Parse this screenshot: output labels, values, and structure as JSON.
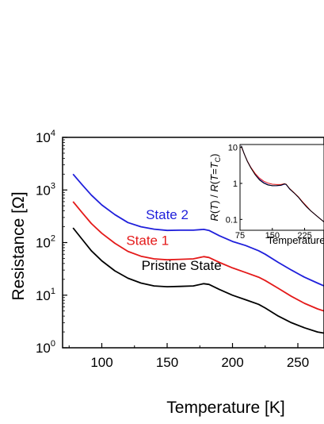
{
  "chart_data": [
    {
      "type": "line",
      "xlabel": "Temperature [K]",
      "ylabel_text": "Resistance [",
      "ylabel_unit": "Ω",
      "ylabel_close": "]",
      "x_scale": "linear",
      "y_scale": "log",
      "xlim": [
        70,
        270
      ],
      "ylim": [
        1,
        10000
      ],
      "x_ticks": [
        {
          "value": 100,
          "label": "100"
        },
        {
          "value": 150,
          "label": "150"
        },
        {
          "value": 200,
          "label": "200"
        },
        {
          "value": 250,
          "label": "250"
        }
      ],
      "y_ticks": [
        {
          "value": 1,
          "base": "10",
          "exp": "0"
        },
        {
          "value": 10,
          "base": "10",
          "exp": "1"
        },
        {
          "value": 100,
          "base": "10",
          "exp": "2"
        },
        {
          "value": 1000,
          "base": "10",
          "exp": "3"
        },
        {
          "value": 10000,
          "base": "10",
          "exp": "4"
        }
      ],
      "grid": false,
      "series": [
        {
          "name": "State 2",
          "color": "#1f1fdb",
          "label_at": {
            "x": 150,
            "y": 280
          },
          "x": [
            78,
            85,
            92,
            100,
            110,
            120,
            130,
            140,
            150,
            160,
            170,
            178,
            182,
            190,
            200,
            210,
            220,
            225,
            235,
            245,
            255,
            265,
            270
          ],
          "y": [
            2000,
            1250,
            800,
            520,
            340,
            240,
            200,
            180,
            170,
            172,
            172,
            178,
            170,
            135,
            105,
            88,
            70,
            60,
            42,
            30,
            22,
            17,
            15
          ]
        },
        {
          "name": "State 1",
          "color": "#e41a1a",
          "label_at": {
            "x": 135,
            "y": 90
          },
          "x": [
            78,
            85,
            92,
            100,
            110,
            120,
            130,
            140,
            150,
            160,
            170,
            178,
            182,
            190,
            200,
            210,
            220,
            225,
            235,
            245,
            255,
            265,
            270
          ],
          "y": [
            600,
            370,
            230,
            150,
            97,
            68,
            55,
            49,
            47,
            48,
            49,
            54,
            52,
            42,
            33,
            27,
            22,
            19,
            13.5,
            9.5,
            7,
            5.5,
            5
          ]
        },
        {
          "name": "Pristine State",
          "color": "#000000",
          "label_at": {
            "x": 161,
            "y": 30
          },
          "x": [
            78,
            85,
            92,
            100,
            110,
            120,
            130,
            140,
            150,
            160,
            170,
            178,
            182,
            190,
            200,
            210,
            220,
            225,
            235,
            245,
            255,
            265,
            270
          ],
          "y": [
            190,
            115,
            70,
            45,
            29,
            21,
            17,
            15,
            14.5,
            14.7,
            15,
            16.5,
            16,
            12.8,
            10,
            8.2,
            6.7,
            5.7,
            4,
            3,
            2.4,
            2,
            1.9
          ]
        }
      ]
    },
    {
      "type": "line",
      "xlabel": "Temperature",
      "ylabel": "R(T) / R(T=T_C)",
      "x_scale": "linear",
      "y_scale": "log",
      "xlim": [
        75,
        270
      ],
      "ylim": [
        0.05,
        12
      ],
      "x_ticks": [
        {
          "value": 75,
          "label": "75"
        },
        {
          "value": 150,
          "label": "150"
        },
        {
          "value": 225,
          "label": "225"
        }
      ],
      "y_ticks": [
        {
          "value": 0.1,
          "label": "0.1"
        },
        {
          "value": 1,
          "label": "1"
        },
        {
          "value": 10,
          "label": "10"
        }
      ],
      "grid": false,
      "series": [
        {
          "color": "#1f1fdb",
          "x": [
            78,
            85,
            92,
            100,
            110,
            120,
            130,
            140,
            150,
            160,
            170,
            178,
            182,
            190,
            200,
            210,
            220,
            230,
            240,
            255,
            270
          ],
          "y": [
            11,
            6.5,
            4.2,
            2.8,
            1.8,
            1.3,
            1.05,
            0.92,
            0.86,
            0.86,
            0.88,
            0.95,
            0.93,
            0.7,
            0.55,
            0.42,
            0.3,
            0.22,
            0.17,
            0.12,
            0.085
          ]
        },
        {
          "color": "#e41a1a",
          "x": [
            78,
            85,
            92,
            100,
            110,
            120,
            130,
            140,
            150,
            160,
            170,
            178,
            182,
            190,
            200,
            210,
            220,
            230,
            240,
            255,
            270
          ],
          "y": [
            10.5,
            6.5,
            4.2,
            2.8,
            1.9,
            1.4,
            1.15,
            1.02,
            0.95,
            0.93,
            0.93,
            0.98,
            0.95,
            0.72,
            0.56,
            0.43,
            0.31,
            0.23,
            0.17,
            0.12,
            0.085
          ]
        },
        {
          "color": "#000000",
          "x": [
            78,
            85,
            92,
            100,
            110,
            120,
            130,
            140,
            150,
            160,
            170,
            178,
            182,
            190,
            200,
            210,
            220,
            230,
            240,
            255,
            270
          ],
          "y": [
            11,
            6.5,
            4.1,
            2.7,
            1.75,
            1.25,
            1.02,
            0.9,
            0.86,
            0.87,
            0.89,
            0.97,
            0.94,
            0.71,
            0.55,
            0.42,
            0.3,
            0.22,
            0.17,
            0.12,
            0.085
          ]
        }
      ]
    }
  ]
}
